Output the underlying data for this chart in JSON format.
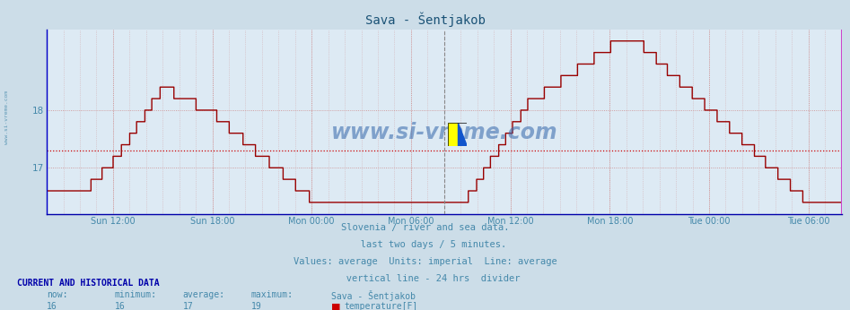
{
  "title": "Sava - Šentjakob",
  "title_color": "#1a5276",
  "bg_color": "#ccdde8",
  "plot_bg_color": "#ddeaf4",
  "line_color": "#990000",
  "line_width": 1.0,
  "avg_line_value": 17.3,
  "avg_line_color": "#cc0000",
  "ylim": [
    16.2,
    19.4
  ],
  "yticks": [
    17,
    18
  ],
  "grid_color": "#cc8888",
  "text_color": "#4488aa",
  "footer_lines": [
    "Slovenia / river and sea data.",
    "   last two days / 5 minutes.",
    "Values: average  Units: imperial  Line: average",
    "   vertical line - 24 hrs  divider"
  ],
  "bottom_label_title": "CURRENT AND HISTORICAL DATA",
  "bottom_cols": [
    "now:",
    "minimum:",
    "average:",
    "maximum:",
    "Sava - Šentjakob"
  ],
  "bottom_vals": [
    "16",
    "16",
    "17",
    "19"
  ],
  "bottom_series": "temperature[F]",
  "watermark": "www.si-vreme.com",
  "watermark_color": "#3366aa",
  "xtick_labels": [
    "Sun 12:00",
    "Sun 18:00",
    "Mon 00:00",
    "Mon 06:00",
    "Mon 12:00",
    "Mon 18:00",
    "Tue 00:00",
    "Tue 06:00"
  ],
  "left_edge_color": "#0000cc",
  "right_edge_color": "#cc44cc",
  "divider_color": "#888888",
  "n_points": 576
}
